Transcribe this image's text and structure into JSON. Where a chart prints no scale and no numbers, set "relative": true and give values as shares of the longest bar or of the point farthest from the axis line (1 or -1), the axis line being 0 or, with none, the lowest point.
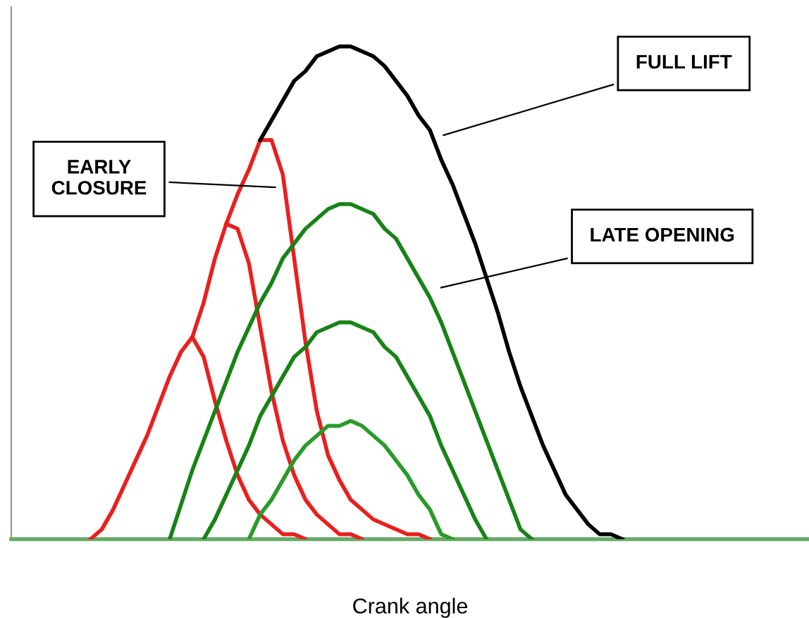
{
  "chart_data": {
    "type": "line",
    "relative": true,
    "xlabel": "Crank angle",
    "marker": "none",
    "line_style": "solid",
    "annotations": [
      "FULL LIFT",
      "EARLY\nCLOSURE",
      "LATE OPENING"
    ],
    "categories": [
      null,
      null,
      null,
      null,
      null,
      null,
      null,
      null,
      null,
      null,
      null,
      null,
      null,
      null,
      null,
      null,
      null,
      null,
      null,
      null,
      null,
      null,
      null,
      null,
      null,
      null,
      null,
      null,
      null,
      null,
      null,
      null,
      null,
      null,
      null,
      null,
      null,
      null,
      null,
      null,
      null,
      null,
      null,
      null,
      null,
      null,
      null,
      null,
      null,
      null,
      null,
      null,
      null,
      null,
      null,
      null,
      null,
      null,
      null,
      null,
      null,
      null,
      null,
      null,
      null,
      null,
      null,
      null,
      null,
      null,
      null
    ],
    "series": [
      {
        "color": "#e8201e",
        "values": [
          null,
          null,
          null,
          null,
          null,
          null,
          null,
          0,
          0.02,
          0.06,
          0.11,
          0.16,
          0.21,
          0.27,
          0.33,
          0.38,
          0.41,
          0.48,
          0.57,
          0.64,
          0.7,
          0.75,
          0.81,
          0.81,
          0.74,
          0.57,
          0.4,
          0.26,
          0.17,
          0.12,
          0.08,
          0.06,
          0.04,
          0.03,
          0.02,
          0.01,
          0.01,
          0,
          null,
          null,
          null,
          null,
          null,
          null,
          null,
          null,
          null,
          null,
          null,
          null,
          null,
          null,
          null,
          null,
          null,
          null,
          null,
          null,
          null,
          null,
          null,
          null,
          null,
          null,
          null,
          null,
          null,
          null,
          null,
          null,
          null
        ]
      },
      {
        "color": "#e8201e",
        "values": [
          null,
          null,
          null,
          null,
          null,
          null,
          null,
          null,
          null,
          null,
          null,
          null,
          null,
          null,
          null,
          null,
          null,
          null,
          null,
          0.64,
          0.63,
          0.56,
          0.43,
          0.3,
          0.2,
          0.13,
          0.08,
          0.05,
          0.03,
          0.01,
          0.01,
          0,
          null,
          null,
          null,
          null,
          null,
          null,
          null,
          null,
          null,
          null,
          null,
          null,
          null,
          null,
          null,
          null,
          null,
          null,
          null,
          null,
          null,
          null,
          null,
          null,
          null,
          null,
          null,
          null,
          null,
          null,
          null,
          null,
          null,
          null,
          null,
          null,
          null,
          null,
          null
        ]
      },
      {
        "color": "#e8201e",
        "values": [
          null,
          null,
          null,
          null,
          null,
          null,
          null,
          null,
          null,
          null,
          null,
          null,
          null,
          null,
          null,
          null,
          0.41,
          0.37,
          0.28,
          0.2,
          0.13,
          0.08,
          0.05,
          0.03,
          0.01,
          0.01,
          0,
          null,
          null,
          null,
          null,
          null,
          null,
          null,
          null,
          null,
          null,
          null,
          null,
          null,
          null,
          null,
          null,
          null,
          null,
          null,
          null,
          null,
          null,
          null,
          null,
          null,
          null,
          null,
          null,
          null,
          null,
          null,
          null,
          null,
          null,
          null,
          null,
          null,
          null,
          null,
          null,
          null,
          null,
          null,
          null
        ]
      },
      {
        "color": "#000000",
        "values": [
          null,
          null,
          null,
          null,
          null,
          null,
          null,
          null,
          null,
          null,
          null,
          null,
          null,
          null,
          null,
          null,
          null,
          null,
          null,
          null,
          null,
          null,
          0.81,
          0.85,
          0.89,
          0.93,
          0.95,
          0.98,
          0.99,
          1,
          1,
          0.99,
          0.98,
          0.96,
          0.93,
          0.9,
          0.86,
          0.83,
          0.77,
          0.72,
          0.66,
          0.6,
          0.53,
          0.46,
          0.38,
          0.31,
          0.25,
          0.19,
          0.14,
          0.09,
          0.06,
          0.03,
          0.01,
          0.01,
          0,
          null,
          null,
          null,
          null,
          null,
          null,
          null,
          null,
          null,
          null,
          null,
          null,
          null,
          null,
          null,
          null
        ]
      },
      {
        "color": "#178317",
        "values": [
          null,
          null,
          null,
          null,
          null,
          null,
          null,
          null,
          null,
          null,
          null,
          null,
          null,
          null,
          0,
          0.07,
          0.14,
          0.2,
          0.26,
          0.32,
          0.38,
          0.43,
          0.48,
          0.52,
          0.57,
          0.6,
          0.63,
          0.65,
          0.67,
          0.68,
          0.68,
          0.67,
          0.66,
          0.63,
          0.61,
          0.57,
          0.53,
          0.49,
          0.44,
          0.38,
          0.32,
          0.26,
          0.2,
          0.14,
          0.08,
          0.02,
          0,
          null,
          null,
          null,
          null,
          null,
          null,
          null,
          null,
          null,
          null,
          null,
          null,
          null,
          null,
          null,
          null,
          null,
          null,
          null,
          null,
          null,
          null,
          null,
          null
        ]
      },
      {
        "color": "#178317",
        "values": [
          null,
          null,
          null,
          null,
          null,
          null,
          null,
          null,
          null,
          null,
          null,
          null,
          null,
          null,
          null,
          null,
          null,
          0,
          0.04,
          0.09,
          0.14,
          0.19,
          0.25,
          0.29,
          0.33,
          0.37,
          0.39,
          0.42,
          0.43,
          0.44,
          0.44,
          0.43,
          0.42,
          0.39,
          0.37,
          0.33,
          0.29,
          0.25,
          0.19,
          0.14,
          0.09,
          0.04,
          0,
          null,
          null,
          null,
          null,
          null,
          null,
          null,
          null,
          null,
          null,
          null,
          null,
          null,
          null,
          null,
          null,
          null,
          null,
          null,
          null,
          null,
          null,
          null,
          null,
          null,
          null,
          null,
          null
        ]
      },
      {
        "color": "#2a9a2a",
        "values": [
          null,
          null,
          null,
          null,
          null,
          null,
          null,
          null,
          null,
          null,
          null,
          null,
          null,
          null,
          null,
          null,
          null,
          null,
          null,
          null,
          null,
          0,
          0.05,
          0.08,
          0.12,
          0.16,
          0.19,
          0.21,
          0.23,
          0.23,
          0.24,
          0.23,
          0.21,
          0.19,
          0.16,
          0.13,
          0.09,
          0.06,
          0.01,
          0,
          null,
          null,
          null,
          null,
          null,
          null,
          null,
          null,
          null,
          null,
          null,
          null,
          null,
          null,
          null,
          null,
          null,
          null,
          null,
          null,
          null,
          null,
          null,
          null,
          null,
          null,
          null,
          null,
          null,
          null,
          null
        ]
      }
    ]
  }
}
